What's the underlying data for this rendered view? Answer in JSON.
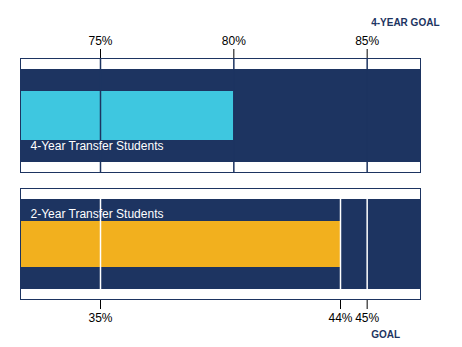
{
  "chart_data": [
    {
      "type": "bar",
      "orientation": "horizontal",
      "categories": [
        "4-Year Transfer Students"
      ],
      "values": [
        80
      ],
      "color": "#3ec7e0",
      "xlim": [
        72,
        87
      ],
      "xticks": [
        {
          "value": 75,
          "label": "75%"
        },
        {
          "value": 80,
          "label": "80%"
        },
        {
          "value": 85,
          "label": "85%"
        }
      ],
      "annotations": [
        {
          "x": 85,
          "text": "4-YEAR GOAL"
        }
      ]
    },
    {
      "type": "bar",
      "orientation": "horizontal",
      "categories": [
        "2-Year Transfer Students"
      ],
      "values": [
        44
      ],
      "color": "#f2b01e",
      "xlim": [
        32,
        47
      ],
      "xticks": [
        {
          "value": 35,
          "label": "35%"
        },
        {
          "value": 44,
          "label": "44%"
        },
        {
          "value": 45,
          "label": "45%"
        }
      ],
      "annotations": [
        {
          "x": 45,
          "text": "GOAL"
        }
      ]
    }
  ]
}
